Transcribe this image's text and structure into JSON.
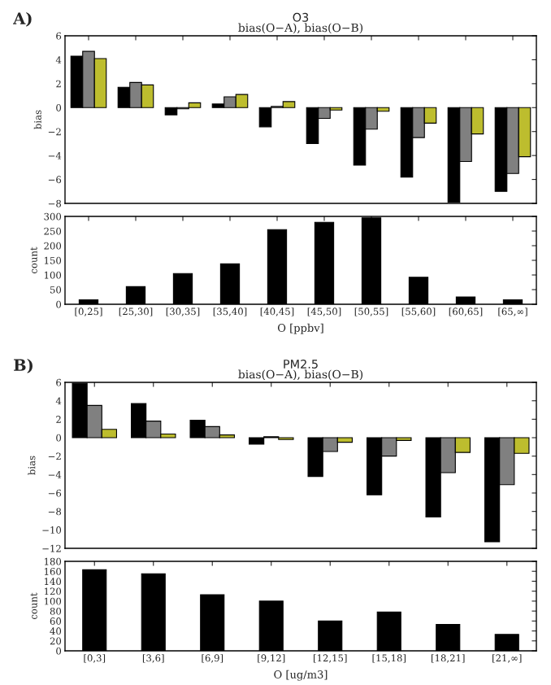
{
  "chart_data": [
    {
      "type": "bar",
      "title": "O3",
      "subtitle": "bias(O−A), bias(O−B)",
      "ylabel": "bias",
      "annotations": [
        "A)"
      ],
      "tick_labels": "y",
      "categories": [
        null,
        null,
        null,
        null,
        null,
        null,
        null,
        null,
        null,
        null
      ],
      "series": [
        {
          "color": "#000000",
          "values": [
            4.3,
            1.7,
            -0.6,
            0.3,
            -1.6,
            -3.0,
            -4.8,
            -5.8,
            -7.9,
            -7.0
          ]
        },
        {
          "color": "#808080",
          "values": [
            4.7,
            2.1,
            -0.1,
            0.9,
            0.1,
            -0.9,
            -1.8,
            -2.5,
            -4.5,
            -5.5
          ]
        },
        {
          "color": "#bdbd2e",
          "values": [
            4.1,
            1.9,
            0.4,
            1.1,
            0.5,
            -0.2,
            -0.3,
            -1.3,
            -2.2,
            -4.1
          ]
        }
      ],
      "ylim": [
        -8,
        6
      ],
      "yticks": [
        {
          "value": -8,
          "label": "−8"
        },
        {
          "value": -6,
          "label": "−6"
        },
        {
          "value": -4,
          "label": "−4"
        },
        {
          "value": -2,
          "label": "−2"
        },
        0,
        2,
        4,
        6
      ]
    },
    {
      "type": "bar",
      "ylabel": "count",
      "xlabel": "O [ppbv]",
      "categories": [
        "[0,25]",
        "[25,30]",
        "[30,35]",
        "[35,40]",
        "[40,45]",
        "[45,50]",
        "[50,55]",
        "[55,60]",
        "[60,65]",
        "[65,∞]"
      ],
      "values": [
        15,
        60,
        105,
        138,
        255,
        280,
        295,
        92,
        25,
        15
      ],
      "color": "#000000",
      "ylim": [
        0,
        300
      ],
      "yticks": [
        0,
        50,
        100,
        150,
        200,
        250,
        300
      ]
    },
    {
      "type": "bar",
      "title": "PM2.5",
      "subtitle": "bias(O−A), bias(O−B)",
      "ylabel": "bias",
      "annotations": [
        "B)"
      ],
      "tick_labels": "y",
      "categories": [
        null,
        null,
        null,
        null,
        null,
        null,
        null,
        null
      ],
      "series": [
        {
          "color": "#000000",
          "values": [
            5.9,
            3.7,
            1.9,
            -0.7,
            -4.2,
            -6.2,
            -8.6,
            -11.3
          ]
        },
        {
          "color": "#808080",
          "values": [
            3.5,
            1.8,
            1.2,
            0.1,
            -1.5,
            -2.0,
            -3.8,
            -5.1
          ]
        },
        {
          "color": "#bdbd2e",
          "values": [
            0.9,
            0.4,
            0.3,
            -0.2,
            -0.5,
            -0.3,
            -1.6,
            -1.7
          ]
        }
      ],
      "ylim": [
        -12,
        6
      ],
      "yticks": [
        {
          "value": -12,
          "label": "−12"
        },
        {
          "value": -10,
          "label": "−10"
        },
        {
          "value": -8,
          "label": "−8"
        },
        {
          "value": -6,
          "label": "−6"
        },
        {
          "value": -4,
          "label": "−4"
        },
        {
          "value": -2,
          "label": "−2"
        },
        0,
        2,
        4,
        6
      ]
    },
    {
      "type": "bar",
      "ylabel": "count",
      "xlabel": "O [ug/m3]",
      "categories": [
        "[0,3]",
        "[3,6]",
        "[6,9]",
        "[9,12]",
        "[12,15]",
        "[15,18]",
        "[18,21]",
        "[21,∞]"
      ],
      "values": [
        163,
        155,
        113,
        100,
        60,
        78,
        53,
        33
      ],
      "color": "#000000",
      "ylim": [
        0,
        180
      ],
      "yticks": [
        0,
        20,
        40,
        60,
        80,
        100,
        120,
        140,
        160,
        180
      ]
    }
  ]
}
